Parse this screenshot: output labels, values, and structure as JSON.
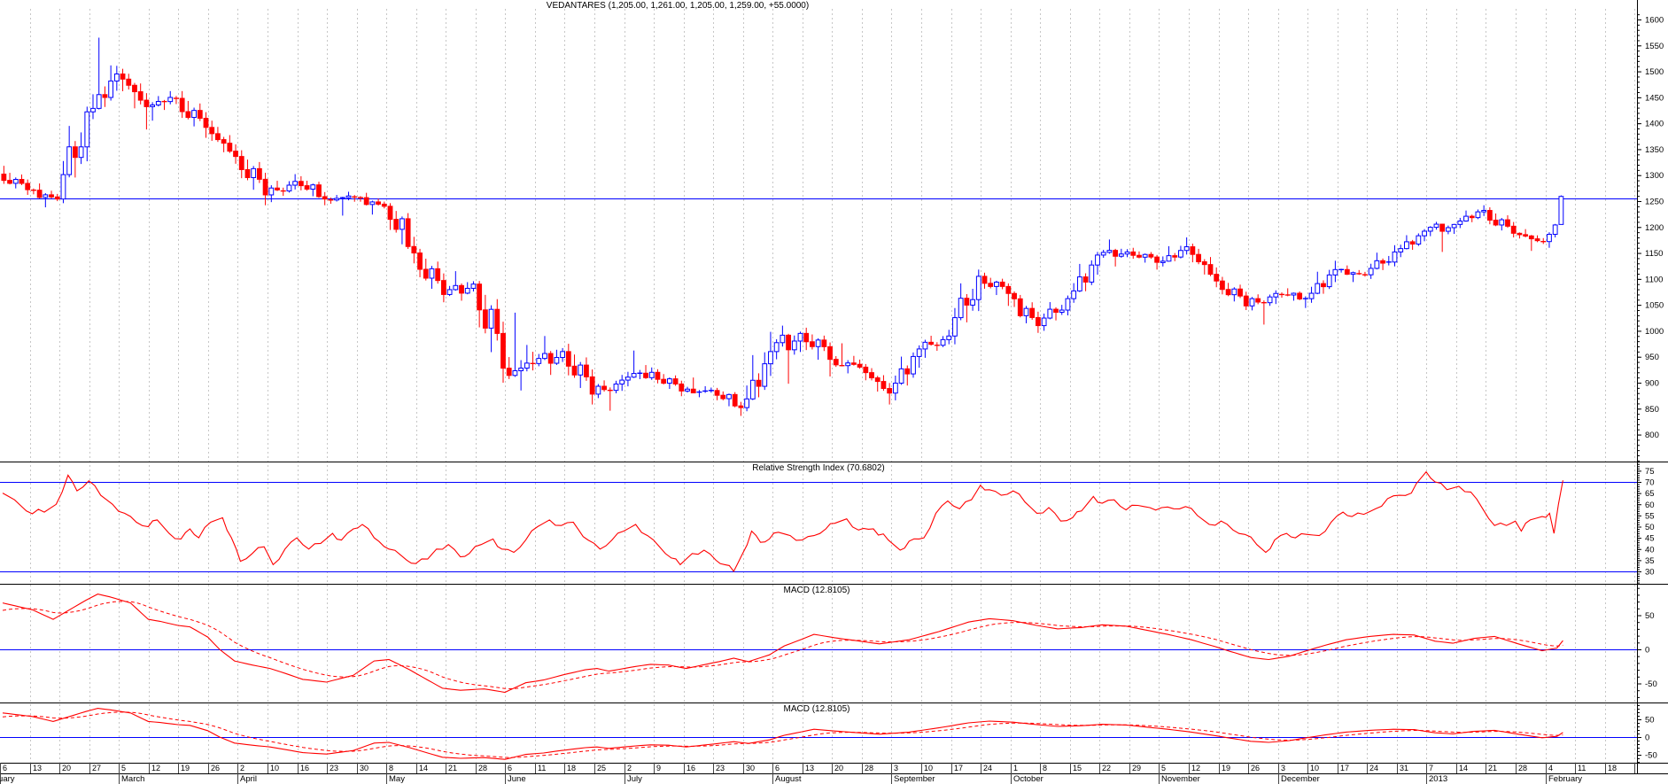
{
  "chart_title": "VEDANTARES (1,205.00, 1,261.00, 1,205.00, 1,259.00, +55.0000)",
  "panels": {
    "price": {
      "title": "VEDANTARES (1,205.00, 1,261.00, 1,205.00, 1,259.00, +55.0000)",
      "yticks": [
        1600,
        1550,
        1500,
        1450,
        1400,
        1350,
        1300,
        1250,
        1200,
        1150,
        1100,
        1050,
        1000,
        950,
        900,
        850,
        800
      ],
      "hline": 1255
    },
    "rsi": {
      "title": "Relative Strength Index (70.6802)",
      "value": 70.6802,
      "yticks": [
        75,
        70,
        65,
        60,
        55,
        50,
        45,
        40,
        35,
        30
      ],
      "overbought": 70,
      "oversold": 30
    },
    "macd1": {
      "title": "MACD (12.8105)",
      "value": 12.8105,
      "yticks": [
        50,
        0,
        -50
      ],
      "hline": 0
    },
    "macd2": {
      "title": "MACD (12.8105)",
      "value": 12.8105,
      "yticks": [
        50,
        0,
        -50
      ],
      "hline": 0
    }
  },
  "colors": {
    "up": "#0000ff",
    "down": "#ff0000",
    "blue_line": "#0000ff",
    "indicator": "#ff0000",
    "grid": "#c6c6c6",
    "axis": "#000000",
    "background": "#ffffff"
  },
  "chart_data": {
    "type": "candlestick+indicators",
    "x_axis": {
      "unit": "week",
      "day_labels": [
        "6",
        "13",
        "20",
        "27",
        "5",
        "12",
        "19",
        "26",
        "2",
        "10",
        "16",
        "23",
        "30",
        "8",
        "14",
        "21",
        "28",
        "6",
        "11",
        "18",
        "25",
        "2",
        "9",
        "16",
        "23",
        "30",
        "6",
        "13",
        "20",
        "28",
        "3",
        "10",
        "17",
        "24",
        "1",
        "8",
        "15",
        "22",
        "29",
        "5",
        "12",
        "19",
        "26",
        "3",
        "10",
        "17",
        "24",
        "31",
        "7",
        "14",
        "21",
        "28",
        "4",
        "11",
        "18"
      ],
      "months": [
        {
          "label": "February",
          "week": 0
        },
        {
          "label": "March",
          "week": 4
        },
        {
          "label": "April",
          "week": 8
        },
        {
          "label": "May",
          "week": 13
        },
        {
          "label": "June",
          "week": 17
        },
        {
          "label": "July",
          "week": 21
        },
        {
          "label": "August",
          "week": 26
        },
        {
          "label": "September",
          "week": 30
        },
        {
          "label": "October",
          "week": 34
        },
        {
          "label": "November",
          "week": 39
        },
        {
          "label": "December",
          "week": 43
        },
        {
          "label": "2013",
          "week": 48
        },
        {
          "label": "February",
          "week": 52
        }
      ]
    },
    "last_bar": {
      "open": "1,205.00",
      "high": "1,261.00",
      "low": "1,205.00",
      "close": "1,259.00",
      "change": "+55.0000"
    },
    "weekly_ohlc": [
      [
        1302,
        1318,
        1262,
        1272
      ],
      [
        1272,
        1284,
        1238,
        1254
      ],
      [
        1254,
        1432,
        1246,
        1422
      ],
      [
        1422,
        1565,
        1408,
        1495
      ],
      [
        1495,
        1505,
        1388,
        1432
      ],
      [
        1432,
        1462,
        1405,
        1448
      ],
      [
        1448,
        1462,
        1372,
        1392
      ],
      [
        1392,
        1405,
        1322,
        1336
      ],
      [
        1336,
        1348,
        1242,
        1262
      ],
      [
        1262,
        1302,
        1248,
        1288
      ],
      [
        1288,
        1298,
        1242,
        1254
      ],
      [
        1254,
        1268,
        1222,
        1258
      ],
      [
        1258,
        1266,
        1224,
        1240
      ],
      [
        1240,
        1246,
        1130,
        1150
      ],
      [
        1150,
        1158,
        1055,
        1070
      ],
      [
        1070,
        1115,
        1058,
        1090
      ],
      [
        1090,
        1096,
        900,
        928
      ],
      [
        928,
        1035,
        885,
        937
      ],
      [
        937,
        990,
        915,
        960
      ],
      [
        960,
        975,
        858,
        878
      ],
      [
        878,
        915,
        846,
        905
      ],
      [
        905,
        962,
        893,
        920
      ],
      [
        920,
        926,
        874,
        884
      ],
      [
        884,
        910,
        872,
        885
      ],
      [
        885,
        890,
        836,
        852
      ],
      [
        852,
        998,
        845,
        960
      ],
      [
        960,
        1010,
        898,
        995
      ],
      [
        995,
        1006,
        912,
        945
      ],
      [
        945,
        976,
        918,
        930
      ],
      [
        930,
        936,
        858,
        880
      ],
      [
        880,
        972,
        866,
        965
      ],
      [
        965,
        1002,
        948,
        990
      ],
      [
        990,
        1118,
        974,
        1105
      ],
      [
        1105,
        1112,
        1048,
        1072
      ],
      [
        1072,
        1076,
        996,
        1010
      ],
      [
        1010,
        1068,
        1000,
        1062
      ],
      [
        1062,
        1152,
        1054,
        1146
      ],
      [
        1146,
        1176,
        1124,
        1152
      ],
      [
        1152,
        1160,
        1118,
        1132
      ],
      [
        1132,
        1180,
        1124,
        1162
      ],
      [
        1162,
        1168,
        1084,
        1096
      ],
      [
        1096,
        1104,
        1040,
        1048
      ],
      [
        1048,
        1078,
        1012,
        1072
      ],
      [
        1072,
        1082,
        1044,
        1062
      ],
      [
        1062,
        1135,
        1054,
        1118
      ],
      [
        1118,
        1126,
        1094,
        1108
      ],
      [
        1108,
        1165,
        1100,
        1152
      ],
      [
        1152,
        1196,
        1142,
        1192
      ],
      [
        1192,
        1210,
        1152,
        1205
      ],
      [
        1205,
        1242,
        1198,
        1232
      ],
      [
        1232,
        1238,
        1180,
        1188
      ],
      [
        1188,
        1196,
        1154,
        1172
      ]
    ],
    "final_week_days": [
      [
        1172,
        1190,
        1160,
        1186
      ],
      [
        1186,
        1206,
        1180,
        1204
      ],
      [
        1205,
        1261,
        1205,
        1259
      ]
    ],
    "rsi_points": [
      [
        0,
        65
      ],
      [
        0.4,
        62
      ],
      [
        0.8,
        57
      ],
      [
        1.4,
        56.5
      ],
      [
        1.8,
        60
      ],
      [
        2.2,
        73
      ],
      [
        2.5,
        66
      ],
      [
        2.9,
        70.5
      ],
      [
        3.3,
        64
      ],
      [
        3.7,
        60
      ],
      [
        4.1,
        56
      ],
      [
        4.5,
        52
      ],
      [
        4.9,
        50
      ],
      [
        5.2,
        53
      ],
      [
        5.6,
        47
      ],
      [
        6,
        44.5
      ],
      [
        6.3,
        49
      ],
      [
        6.6,
        45
      ],
      [
        7,
        52
      ],
      [
        7.4,
        54
      ],
      [
        7.7,
        45
      ],
      [
        8,
        34.5
      ],
      [
        8.4,
        38
      ],
      [
        8.8,
        41
      ],
      [
        9.1,
        33
      ],
      [
        9.5,
        40
      ],
      [
        9.9,
        45
      ],
      [
        10.3,
        40
      ],
      [
        10.7,
        42.5
      ],
      [
        11.1,
        47
      ],
      [
        11.4,
        44
      ],
      [
        11.8,
        49
      ],
      [
        12.1,
        51
      ],
      [
        12.5,
        45
      ],
      [
        13,
        40
      ],
      [
        13.6,
        35
      ],
      [
        13.9,
        33.5
      ],
      [
        14.3,
        35.5
      ],
      [
        14.6,
        40
      ],
      [
        15,
        42
      ],
      [
        15.4,
        36.5
      ],
      [
        15.7,
        38
      ],
      [
        16.1,
        42
      ],
      [
        16.5,
        44.5
      ],
      [
        16.8,
        40
      ],
      [
        17.2,
        38.5
      ],
      [
        17.6,
        44
      ],
      [
        18,
        50
      ],
      [
        18.4,
        53
      ],
      [
        18.8,
        50.5
      ],
      [
        19.2,
        52
      ],
      [
        19.7,
        44
      ],
      [
        20.1,
        40
      ],
      [
        20.5,
        44
      ],
      [
        20.9,
        48
      ],
      [
        21.3,
        51
      ],
      [
        21.7,
        46
      ],
      [
        22.1,
        41
      ],
      [
        22.5,
        36
      ],
      [
        22.8,
        33
      ],
      [
        23.2,
        38
      ],
      [
        23.6,
        39.5
      ],
      [
        24,
        35
      ],
      [
        24.3,
        33
      ],
      [
        24.6,
        30
      ],
      [
        24.9,
        38
      ],
      [
        25.2,
        48
      ],
      [
        25.5,
        43
      ],
      [
        25.8,
        44.5
      ],
      [
        26.1,
        47.5
      ],
      [
        26.5,
        46
      ],
      [
        26.9,
        44
      ],
      [
        27.3,
        46
      ],
      [
        27.7,
        49
      ],
      [
        28,
        51.5
      ],
      [
        28.4,
        53.5
      ],
      [
        28.8,
        48.5
      ],
      [
        29.3,
        49
      ],
      [
        29.8,
        44
      ],
      [
        30.2,
        39.5
      ],
      [
        30.5,
        43.5
      ],
      [
        31,
        45
      ],
      [
        31.4,
        56
      ],
      [
        31.8,
        61.5
      ],
      [
        32.2,
        58
      ],
      [
        32.6,
        62
      ],
      [
        32.9,
        68.5
      ],
      [
        33.2,
        66.5
      ],
      [
        33.6,
        64
      ],
      [
        34,
        66
      ],
      [
        34.4,
        61
      ],
      [
        34.8,
        56
      ],
      [
        35.2,
        58.5
      ],
      [
        35.6,
        52.5
      ],
      [
        36,
        54
      ],
      [
        36.3,
        57
      ],
      [
        36.7,
        63.5
      ],
      [
        37,
        60.5
      ],
      [
        37.4,
        62
      ],
      [
        37.8,
        57.5
      ],
      [
        38.2,
        59.5
      ],
      [
        38.6,
        58.5
      ],
      [
        39,
        58.5
      ],
      [
        39.4,
        58
      ],
      [
        39.8,
        59
      ],
      [
        40.2,
        55
      ],
      [
        40.6,
        51
      ],
      [
        41,
        52.5
      ],
      [
        41.4,
        48.5
      ],
      [
        41.8,
        46.5
      ],
      [
        42.2,
        42
      ],
      [
        42.5,
        38.5
      ],
      [
        42.8,
        44
      ],
      [
        43.2,
        47
      ],
      [
        43.5,
        45
      ],
      [
        43.9,
        46.5
      ],
      [
        44.3,
        46
      ],
      [
        44.7,
        52
      ],
      [
        45.1,
        56.5
      ],
      [
        45.4,
        54.5
      ],
      [
        45.8,
        55.5
      ],
      [
        46.2,
        58
      ],
      [
        46.6,
        62.5
      ],
      [
        47,
        64
      ],
      [
        47.4,
        65
      ],
      [
        47.9,
        74.5
      ],
      [
        48.2,
        70
      ],
      [
        48.6,
        66.5
      ],
      [
        49,
        68
      ],
      [
        49.4,
        65.5
      ],
      [
        49.8,
        58
      ],
      [
        50.2,
        50.5
      ],
      [
        50.6,
        50.5
      ],
      [
        50.9,
        52.5
      ],
      [
        51.1,
        48
      ],
      [
        51.4,
        53
      ],
      [
        51.8,
        54.5
      ],
      [
        52.05,
        56
      ],
      [
        52.2,
        47
      ],
      [
        52.35,
        60
      ],
      [
        52.5,
        70.7
      ]
    ],
    "macd_points": [
      [
        0,
        68
      ],
      [
        1,
        58
      ],
      [
        1.7,
        44
      ],
      [
        2.8,
        72
      ],
      [
        3.2,
        81
      ],
      [
        3.6,
        77
      ],
      [
        4.3,
        68
      ],
      [
        4.9,
        44
      ],
      [
        5.3,
        41
      ],
      [
        5.9,
        35
      ],
      [
        6.3,
        33
      ],
      [
        6.9,
        18
      ],
      [
        7.3,
        0
      ],
      [
        7.8,
        -17
      ],
      [
        8.4,
        -23
      ],
      [
        9,
        -28
      ],
      [
        9.7,
        -38
      ],
      [
        10.1,
        -44
      ],
      [
        10.9,
        -48
      ],
      [
        11.8,
        -38
      ],
      [
        12.5,
        -17
      ],
      [
        13,
        -15
      ],
      [
        13.7,
        -30
      ],
      [
        14.3,
        -45
      ],
      [
        14.8,
        -57
      ],
      [
        15.4,
        -60
      ],
      [
        16.2,
        -58
      ],
      [
        16.9,
        -63
      ],
      [
        17.6,
        -49
      ],
      [
        18.2,
        -45
      ],
      [
        18.8,
        -38
      ],
      [
        19.6,
        -30
      ],
      [
        20,
        -28
      ],
      [
        20.4,
        -32
      ],
      [
        21.3,
        -25
      ],
      [
        21.8,
        -22
      ],
      [
        22.4,
        -23
      ],
      [
        23,
        -28
      ],
      [
        24.1,
        -18
      ],
      [
        24.6,
        -13
      ],
      [
        25.1,
        -18
      ],
      [
        25.8,
        -8
      ],
      [
        26.3,
        5
      ],
      [
        26.9,
        15
      ],
      [
        27.3,
        22
      ],
      [
        28,
        17
      ],
      [
        28.5,
        14
      ],
      [
        29.5,
        8
      ],
      [
        30.5,
        14
      ],
      [
        31.5,
        26
      ],
      [
        32.5,
        40
      ],
      [
        33.2,
        45
      ],
      [
        34,
        42
      ],
      [
        34.8,
        35
      ],
      [
        35.5,
        30
      ],
      [
        36.3,
        32
      ],
      [
        37,
        36
      ],
      [
        37.8,
        34
      ],
      [
        38.5,
        28
      ],
      [
        39.2,
        22
      ],
      [
        40,
        14
      ],
      [
        40.8,
        4
      ],
      [
        41.3,
        -3
      ],
      [
        42,
        -12
      ],
      [
        42.6,
        -15
      ],
      [
        43.3,
        -10
      ],
      [
        43.8,
        -3
      ],
      [
        44.5,
        6
      ],
      [
        45.2,
        14
      ],
      [
        46,
        19
      ],
      [
        46.8,
        22
      ],
      [
        47.5,
        21
      ],
      [
        48.2,
        12
      ],
      [
        48.8,
        9
      ],
      [
        49.5,
        16
      ],
      [
        50.2,
        19
      ],
      [
        51,
        8
      ],
      [
        51.8,
        -2
      ],
      [
        52.3,
        2
      ],
      [
        52.5,
        12.8
      ]
    ]
  }
}
